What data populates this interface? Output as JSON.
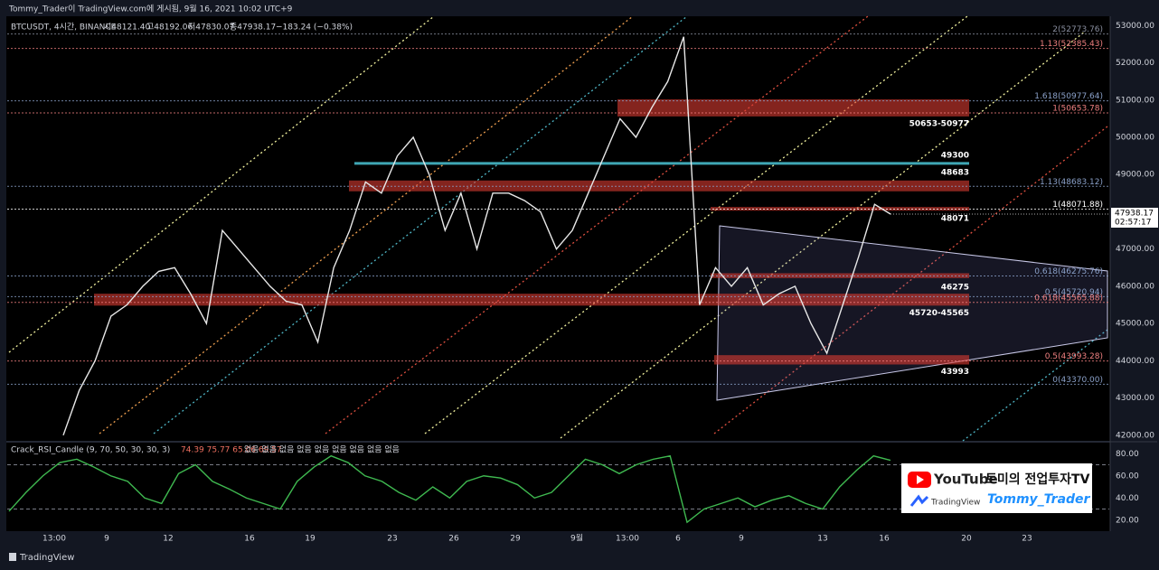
{
  "header": {
    "title": "Tommy_Trader이 TradingView.com에 게시됨, 9월 16, 2021 10:02 UTC+9"
  },
  "chart_data": {
    "type": "line",
    "symbol": "BTCUSDT, 4시간, BINANCE",
    "ohlc_text": [
      "시48121.40",
      "고48192.06",
      "저47830.07",
      "종47938.17",
      "−183.24 (−0.38%)"
    ],
    "ylim": [
      41850,
      53250
    ],
    "yticks": [
      {
        "value": 53000,
        "label": "53000.00"
      },
      {
        "value": 52000,
        "label": "52000.00"
      },
      {
        "value": 51000,
        "label": "51000.00"
      },
      {
        "value": 50000,
        "label": "50000.00"
      },
      {
        "value": 49000,
        "label": "49000.00"
      },
      {
        "value": 48000,
        "label": "48000.00"
      },
      {
        "value": 47000,
        "label": "47000.00"
      },
      {
        "value": 46000,
        "label": "46000.00"
      },
      {
        "value": 45000,
        "label": "45000.00"
      },
      {
        "value": 44000,
        "label": "44000.00"
      },
      {
        "value": 43000,
        "label": "43000.00"
      },
      {
        "value": 42000,
        "label": "42000.00"
      }
    ],
    "price": [
      42000,
      43200,
      44000,
      45200,
      45500,
      46000,
      46400,
      46500,
      45800,
      45000,
      47500,
      47000,
      46500,
      46000,
      45600,
      45500,
      44500,
      46500,
      47500,
      48800,
      48500,
      49500,
      50000,
      49000,
      47500,
      48500,
      47000,
      48500,
      48500,
      48300,
      48000,
      47000,
      47500,
      48500,
      49500,
      50500,
      50000,
      50800,
      51500,
      52700,
      45500,
      46500,
      46000,
      46500,
      45500,
      45800,
      46000,
      45000,
      44200,
      45500,
      46800,
      48200,
      47938.17
    ],
    "last_price": {
      "value": 47938.17,
      "label": "47938.17"
    },
    "countdown": "02:57:17",
    "fib_levels": [
      {
        "label": "2(52773.76)",
        "price": 52773.76
      },
      {
        "label": "1.13(52385.43)",
        "price": 52385.43
      },
      {
        "label": "1.618(50977.64)",
        "price": 50977.64
      },
      {
        "label": "1(50653.78)",
        "price": 50653.78
      },
      {
        "label": "1.13(48683.12)",
        "price": 48683.12
      },
      {
        "label": "1(48071.88)",
        "price": 48071.88
      },
      {
        "label": "0.618(46275.76)",
        "price": 46275.76
      },
      {
        "label": "0.5(45720.94)",
        "price": 45720.94
      },
      {
        "label": "0.618(45565.88)",
        "price": 45565.88
      },
      {
        "label": "0.5(43993.28)",
        "price": 43993.28
      },
      {
        "label": "0(43370.00)",
        "price": 43370
      }
    ],
    "zones": [
      {
        "label": "50653-50977",
        "low": 50560,
        "high": 51020
      },
      {
        "label": "48683",
        "low": 48550,
        "high": 48840
      },
      {
        "label": "48071",
        "low": 48030,
        "high": 48130
      },
      {
        "label": "46275",
        "low": 46220,
        "high": 46350
      },
      {
        "label": "45720-45565",
        "low": 45480,
        "high": 45800
      },
      {
        "label": "43993",
        "low": 43900,
        "high": 44150
      }
    ],
    "line_level": {
      "label": "49300",
      "price": 49300
    },
    "xticks": [
      "13:00",
      "9",
      "12",
      "16",
      "19",
      "23",
      "26",
      "29",
      "9월",
      "13:00",
      "6",
      "9",
      "13",
      "16",
      "20",
      "23"
    ]
  },
  "rsi": {
    "title": "Crack_RSI_Candle (9, 70, 50, 30, 30, 3)",
    "values_text": "74.39 75.77 65.06 69.57",
    "none_text": "없음 없음 없음 없음 없음 없음 없음 없음 없음",
    "ylim": [
      10,
      90
    ],
    "yticks": [
      {
        "value": 80,
        "label": "80.00"
      },
      {
        "value": 60,
        "label": "60.00"
      },
      {
        "value": 40,
        "label": "40.00"
      },
      {
        "value": 20,
        "label": "20.00"
      }
    ],
    "bands": [
      70,
      30
    ],
    "values": [
      28,
      45,
      60,
      72,
      75,
      68,
      60,
      55,
      40,
      35,
      62,
      70,
      55,
      48,
      40,
      35,
      30,
      55,
      68,
      78,
      72,
      60,
      55,
      45,
      38,
      50,
      40,
      55,
      60,
      58,
      52,
      40,
      45,
      60,
      75,
      70,
      62,
      70,
      75,
      78,
      18,
      30,
      35,
      40,
      32,
      38,
      42,
      35,
      30,
      50,
      65,
      78,
      74
    ]
  },
  "branding": {
    "youtube": "YouTube",
    "channel": "토미의 전업투자TV",
    "tradingview": "TradingView",
    "author": "Tommy_Trader"
  },
  "footer": {
    "brand": "TradingView"
  }
}
